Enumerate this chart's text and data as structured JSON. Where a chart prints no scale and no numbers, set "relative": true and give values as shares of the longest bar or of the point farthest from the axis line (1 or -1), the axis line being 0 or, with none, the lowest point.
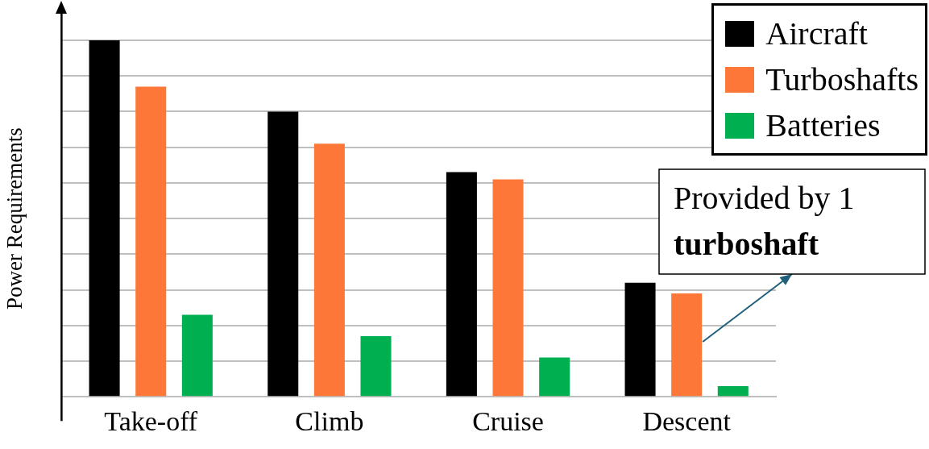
{
  "chart_data": {
    "type": "bar",
    "ylabel": "Power Requirements",
    "relative": true,
    "grid": "y",
    "legend": "top right",
    "categories": [
      "Take-off",
      "Climb",
      "Cruise",
      "Descent"
    ],
    "series": [
      {
        "name": "Aircraft",
        "color": "#000000",
        "values": [
          1,
          0.8,
          0.63,
          0.32
        ]
      },
      {
        "name": "Turboshafts",
        "color": "#fd7838",
        "values": [
          0.87,
          0.71,
          0.61,
          0.29
        ]
      },
      {
        "name": "Batteries",
        "color": "#00b050",
        "values": [
          0.23,
          0.17,
          0.11,
          0.03
        ]
      }
    ],
    "annotations": [
      {
        "text": "Provided by 1 turboshaft",
        "x": "Descent",
        "y": 0.29
      }
    ]
  }
}
